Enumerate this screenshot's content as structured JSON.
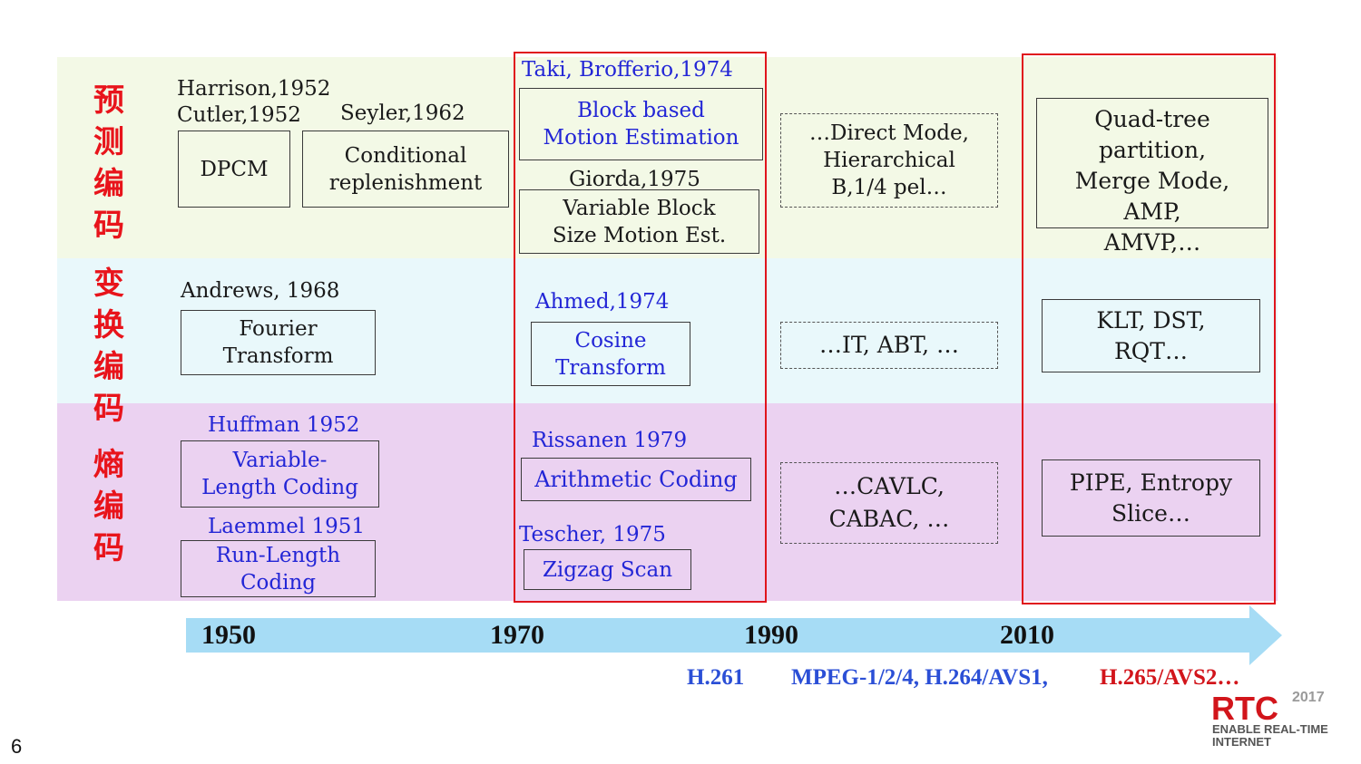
{
  "categories": {
    "prediction": "预测编码",
    "transform": "变换编码",
    "entropy": "熵编码"
  },
  "prediction": {
    "harrison": "Harrison,1952",
    "cutler": "Cutler,1952",
    "seyler": "Seyler,1962",
    "dpcm": "DPCM",
    "conditional_1": "Conditional",
    "conditional_2": "replenishment",
    "taki": "Taki, Brofferio,1974",
    "block_1": "Block based",
    "block_2": "Motion Estimation",
    "giorda": "Giorda,1975",
    "vbs_1": "Variable Block",
    "vbs_2": "Size Motion Est.",
    "direct_1": "…Direct Mode,",
    "direct_2": "Hierarchical",
    "direct_3": "B,1/4 pel…",
    "quad_1": "Quad-tree",
    "quad_2": "partition,",
    "quad_3": "Merge Mode,",
    "quad_4": "AMP,",
    "quad_5": "AMVP,…"
  },
  "transform": {
    "andrews": "Andrews, 1968",
    "fourier_1": "Fourier",
    "fourier_2": "Transform",
    "ahmed": "Ahmed,1974",
    "cosine_1": "Cosine",
    "cosine_2": "Transform",
    "it_abt": "…IT, ABT, …",
    "klt_1": "KLT, DST,",
    "klt_2": "RQT…"
  },
  "entropy": {
    "huffman": "Huffman 1952",
    "vlc_1": "Variable-",
    "vlc_2": "Length Coding",
    "laemmel": "Laemmel 1951",
    "rl_1": "Run-Length",
    "rl_2": "Coding",
    "rissanen": "Rissanen 1979",
    "arith": "Arithmetic Coding",
    "tescher": "Tescher, 1975",
    "zigzag": "Zigzag Scan",
    "cavlc_1": "…CAVLC,",
    "cavlc_2": "CABAC, …",
    "pipe_1": "PIPE, Entropy",
    "pipe_2": "Slice…"
  },
  "timeline": {
    "years": [
      "1950",
      "1970",
      "1990",
      "2010"
    ]
  },
  "standards": {
    "h261": "H.261",
    "mpeg": "MPEG-1/2/4, H.264/AVS1,",
    "h265": "H.265/AVS2…"
  },
  "footer": {
    "page_number": "6",
    "logo_year": "2017",
    "logo_letters": "RTC",
    "logo_line1": "ENABLE REAL-TIME",
    "logo_line2": "INTERNET"
  },
  "colors": {
    "highlight_frame": "#e0151d",
    "blue_text": "#2326d6",
    "standard_blue": "#2b4fd6",
    "standard_red": "#d2151b",
    "arrow": "#a6dcf5"
  }
}
